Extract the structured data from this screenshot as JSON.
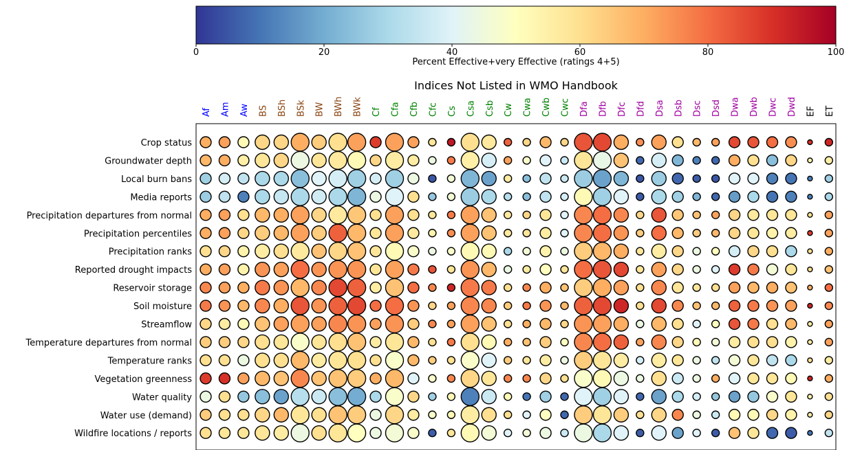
{
  "chart_data": {
    "type": "bubble-matrix",
    "title": "Indices Not Listed in WMO Handbook",
    "colorbar": {
      "label": "Percent Effective+very Effective (ratings 4+5)",
      "min": 0,
      "max": 100,
      "ticks": [
        "0",
        "20",
        "40",
        "60",
        "80",
        "100"
      ],
      "colormap": "RdYlBu_r"
    },
    "climate_groups": {
      "A": "#0000ff",
      "B": "#8b4513",
      "C": "#008000",
      "D": "#a000a0",
      "E": "#000000"
    },
    "columns": [
      {
        "label": "Af",
        "group": "A"
      },
      {
        "label": "Am",
        "group": "A"
      },
      {
        "label": "Aw",
        "group": "A"
      },
      {
        "label": "BS",
        "group": "B"
      },
      {
        "label": "BSh",
        "group": "B"
      },
      {
        "label": "BSk",
        "group": "B"
      },
      {
        "label": "BW",
        "group": "B"
      },
      {
        "label": "BWh",
        "group": "B"
      },
      {
        "label": "BWk",
        "group": "B"
      },
      {
        "label": "Cf",
        "group": "C"
      },
      {
        "label": "Cfa",
        "group": "C"
      },
      {
        "label": "Cfb",
        "group": "C"
      },
      {
        "label": "Cfc",
        "group": "C"
      },
      {
        "label": "Cs",
        "group": "C"
      },
      {
        "label": "Csa",
        "group": "C"
      },
      {
        "label": "Csb",
        "group": "C"
      },
      {
        "label": "Cw",
        "group": "C"
      },
      {
        "label": "Cwa",
        "group": "C"
      },
      {
        "label": "Cwb",
        "group": "C"
      },
      {
        "label": "Cwc",
        "group": "C"
      },
      {
        "label": "Dfa",
        "group": "D"
      },
      {
        "label": "Dfb",
        "group": "D"
      },
      {
        "label": "Dfc",
        "group": "D"
      },
      {
        "label": "Dfd",
        "group": "D"
      },
      {
        "label": "Dsa",
        "group": "D"
      },
      {
        "label": "Dsb",
        "group": "D"
      },
      {
        "label": "Dsc",
        "group": "D"
      },
      {
        "label": "Dsd",
        "group": "D"
      },
      {
        "label": "Dwa",
        "group": "D"
      },
      {
        "label": "Dwb",
        "group": "D"
      },
      {
        "label": "Dwc",
        "group": "D"
      },
      {
        "label": "Dwd",
        "group": "D"
      },
      {
        "label": "EF",
        "group": "E"
      },
      {
        "label": "ET",
        "group": "E"
      }
    ],
    "bubble_size_class": [
      2,
      2,
      2,
      3,
      3,
      4,
      3,
      4,
      4,
      2,
      4,
      2,
      1,
      1,
      4,
      3,
      1,
      1,
      2,
      1,
      4,
      4,
      3,
      1,
      3,
      2,
      1,
      1,
      2,
      2,
      2,
      2,
      0,
      1
    ],
    "rows": [
      {
        "label": "Crop status",
        "values": [
          70,
          72,
          52,
          62,
          62,
          70,
          64,
          60,
          72,
          88,
          72,
          72,
          58,
          95,
          60,
          57,
          82,
          62,
          68,
          62,
          84,
          86,
          70,
          75,
          72,
          60,
          68,
          72,
          86,
          84,
          80,
          75,
          90,
          92
        ]
      },
      {
        "label": "Groundwater depth",
        "values": [
          68,
          70,
          55,
          58,
          62,
          44,
          58,
          57,
          52,
          62,
          56,
          56,
          44,
          78,
          55,
          38,
          72,
          48,
          40,
          36,
          58,
          43,
          66,
          8,
          38,
          22,
          12,
          8,
          70,
          60,
          24,
          62,
          54,
          55
        ]
      },
      {
        "label": "Local burn bans",
        "values": [
          28,
          38,
          34,
          30,
          30,
          24,
          40,
          38,
          28,
          38,
          28,
          44,
          5,
          46,
          22,
          18,
          56,
          24,
          34,
          36,
          27,
          18,
          22,
          5,
          27,
          8,
          6,
          5,
          40,
          40,
          12,
          10,
          12,
          28
        ]
      },
      {
        "label": "Media reports",
        "values": [
          27,
          34,
          12,
          30,
          35,
          30,
          37,
          30,
          22,
          44,
          40,
          60,
          26,
          46,
          27,
          30,
          32,
          24,
          34,
          38,
          52,
          28,
          40,
          6,
          30,
          28,
          22,
          8,
          17,
          30,
          10,
          12,
          12,
          30
        ]
      },
      {
        "label": "Precipitation departures from normal",
        "values": [
          70,
          72,
          60,
          68,
          70,
          72,
          62,
          57,
          65,
          60,
          72,
          60,
          58,
          78,
          72,
          66,
          57,
          62,
          58,
          40,
          76,
          80,
          76,
          62,
          84,
          65,
          66,
          72,
          62,
          57,
          58,
          58,
          60,
          72
        ]
      },
      {
        "label": "Precipitation percentiles",
        "values": [
          70,
          72,
          62,
          64,
          68,
          72,
          64,
          82,
          68,
          58,
          72,
          57,
          54,
          75,
          72,
          66,
          57,
          58,
          56,
          40,
          76,
          80,
          74,
          64,
          80,
          68,
          64,
          68,
          62,
          58,
          54,
          56,
          88,
          72
        ]
      },
      {
        "label": "Precipitation ranks",
        "values": [
          60,
          62,
          54,
          56,
          60,
          57,
          66,
          62,
          66,
          58,
          52,
          48,
          44,
          48,
          52,
          52,
          30,
          46,
          54,
          44,
          64,
          68,
          70,
          58,
          56,
          62,
          44,
          50,
          38,
          62,
          60,
          30,
          60,
          70
        ]
      },
      {
        "label": "Reported drought impacts",
        "values": [
          70,
          72,
          54,
          74,
          72,
          80,
          74,
          74,
          74,
          58,
          72,
          78,
          84,
          58,
          74,
          68,
          44,
          56,
          50,
          58,
          80,
          84,
          86,
          58,
          72,
          62,
          44,
          40,
          88,
          78,
          46,
          58,
          60,
          66
        ]
      },
      {
        "label": "Reservoir storage",
        "values": [
          76,
          72,
          70,
          78,
          74,
          68,
          76,
          86,
          82,
          56,
          66,
          80,
          76,
          92,
          78,
          78,
          60,
          76,
          70,
          66,
          64,
          70,
          72,
          60,
          76,
          58,
          58,
          60,
          72,
          68,
          70,
          66,
          70,
          80
        ]
      },
      {
        "label": "Soil moisture",
        "values": [
          78,
          74,
          68,
          76,
          70,
          84,
          74,
          82,
          86,
          80,
          80,
          74,
          62,
          72,
          76,
          76,
          64,
          78,
          74,
          68,
          82,
          86,
          92,
          60,
          86,
          76,
          66,
          68,
          82,
          78,
          74,
          72,
          92,
          76
        ]
      },
      {
        "label": "Streamflow",
        "values": [
          62,
          56,
          52,
          66,
          72,
          72,
          72,
          76,
          74,
          72,
          74,
          64,
          76,
          72,
          72,
          66,
          60,
          70,
          68,
          62,
          74,
          72,
          70,
          44,
          68,
          60,
          40,
          50,
          84,
          78,
          60,
          68,
          56,
          72
        ]
      },
      {
        "label": "Temperature departures from normal",
        "values": [
          64,
          64,
          62,
          60,
          58,
          48,
          58,
          60,
          66,
          56,
          58,
          68,
          60,
          78,
          60,
          52,
          70,
          66,
          64,
          50,
          76,
          80,
          82,
          72,
          76,
          62,
          52,
          46,
          56,
          60,
          60,
          54,
          56,
          72
        ]
      },
      {
        "label": "Temperature ranks",
        "values": [
          60,
          60,
          44,
          60,
          60,
          68,
          56,
          58,
          60,
          60,
          48,
          68,
          64,
          60,
          48,
          40,
          64,
          58,
          56,
          44,
          64,
          58,
          56,
          38,
          56,
          58,
          44,
          34,
          46,
          58,
          34,
          30,
          60,
          56
        ]
      },
      {
        "label": "Vegetation greenness",
        "values": [
          88,
          90,
          72,
          68,
          66,
          76,
          66,
          66,
          64,
          70,
          68,
          40,
          48,
          76,
          62,
          58,
          76,
          76,
          62,
          60,
          48,
          52,
          44,
          44,
          60,
          36,
          44,
          70,
          40,
          58,
          58,
          52,
          92,
          70
        ]
      },
      {
        "label": "Water quality",
        "values": [
          44,
          60,
          26,
          24,
          18,
          32,
          36,
          24,
          20,
          30,
          48,
          62,
          28,
          52,
          12,
          36,
          52,
          10,
          28,
          8,
          40,
          28,
          40,
          8,
          18,
          30,
          38,
          26,
          18,
          26,
          48,
          58,
          54,
          60
        ]
      },
      {
        "label": "Water use (demand)",
        "values": [
          64,
          60,
          60,
          62,
          68,
          58,
          60,
          66,
          64,
          44,
          62,
          56,
          48,
          52,
          56,
          60,
          60,
          40,
          50,
          8,
          64,
          58,
          64,
          60,
          62,
          76,
          44,
          36,
          52,
          52,
          62,
          54,
          56,
          62
        ]
      },
      {
        "label": "Wildfire locations / reports",
        "values": [
          60,
          58,
          58,
          58,
          56,
          44,
          60,
          58,
          50,
          44,
          46,
          48,
          6,
          58,
          52,
          46,
          40,
          46,
          44,
          36,
          44,
          30,
          40,
          6,
          40,
          18,
          40,
          6,
          66,
          58,
          8,
          6,
          10,
          34
        ]
      }
    ]
  }
}
